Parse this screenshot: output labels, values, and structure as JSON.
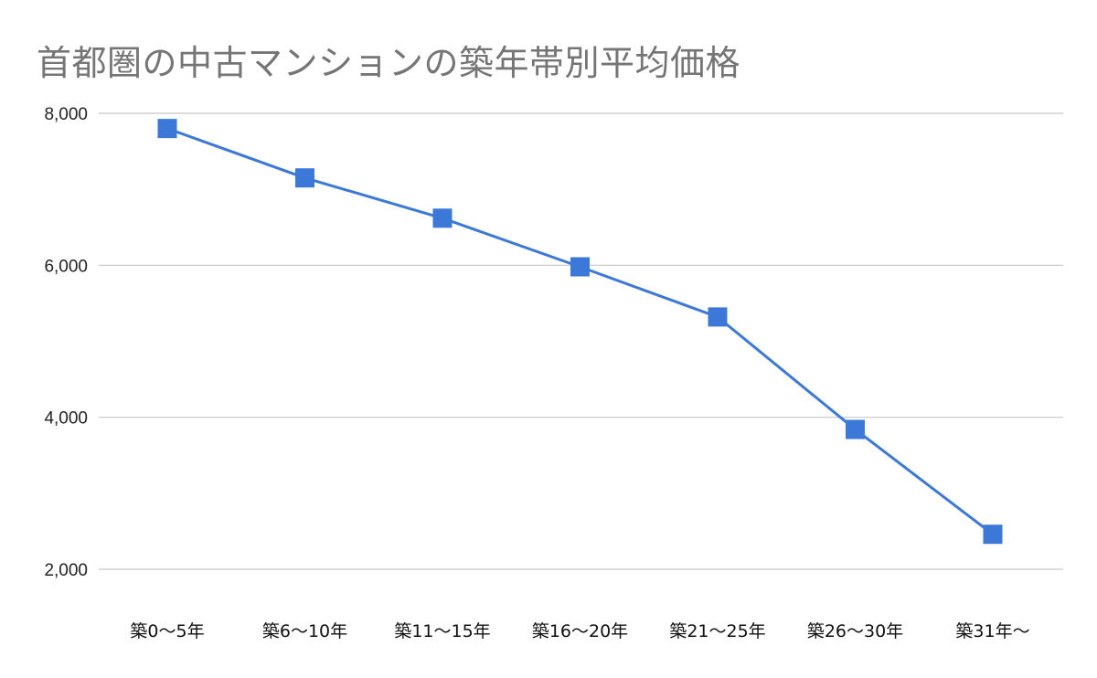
{
  "chart_data": {
    "type": "line",
    "title": "首都圏の中古マンションの築年帯別平均価格",
    "xlabel": "",
    "ylabel": "",
    "categories": [
      "築0～5年",
      "築6～10年",
      "築11～15年",
      "築16～20年",
      "築21～25年",
      "築26～30年",
      "築31年～"
    ],
    "series": [
      {
        "values": [
          7800,
          7150,
          6620,
          5980,
          5320,
          3840,
          2460
        ]
      }
    ],
    "ylim": [
      2000,
      8000
    ],
    "yticks": [
      2000,
      4000,
      6000,
      8000
    ],
    "ytick_labels": [
      "2,000",
      "4,000",
      "6,000",
      "8,000"
    ],
    "grid": true,
    "legend": "none",
    "marker": "square",
    "colors": {
      "series": "#3c78d8",
      "grid": "#c8c8c8",
      "title": "#757575"
    }
  }
}
